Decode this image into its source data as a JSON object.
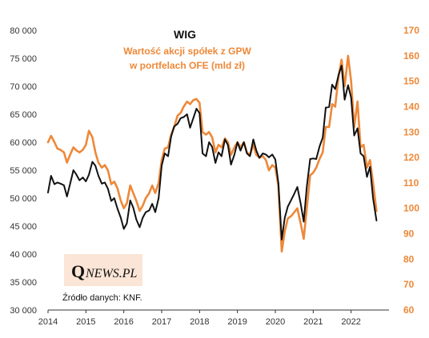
{
  "chart_data": {
    "type": "line",
    "title": "WIG",
    "subtitle_lines": [
      "Wartość akcji spółek z GPW",
      "w portfelach OFE (mld zł)"
    ],
    "source": "Źródło danych: KNF.",
    "logo": {
      "q": "Q",
      "rest": "NEWS.PL"
    },
    "x_ticks": [
      "2014",
      "2015",
      "2016",
      "2017",
      "2018",
      "2019",
      "2020",
      "2021",
      "2022"
    ],
    "left_axis": {
      "ylim": [
        30000,
        80000
      ],
      "ticks": [
        "30 000",
        "35 000",
        "40 000",
        "45 000",
        "50 000",
        "55 000",
        "60 000",
        "65 000",
        "70 000",
        "75 000",
        "80 000"
      ]
    },
    "right_axis": {
      "ylim": [
        60,
        170
      ],
      "ticks": [
        "60",
        "70",
        "80",
        "90",
        "100",
        "110",
        "120",
        "130",
        "140",
        "150",
        "160",
        "170"
      ]
    },
    "colors": {
      "wig": "#111111",
      "ofe": "#ee8838",
      "axis": "#333333",
      "logo_bg": "#fbe5d6"
    },
    "series": [
      {
        "axis": "left",
        "color": "#111111",
        "points": [
          [
            2014.0,
            51000
          ],
          [
            2014.08,
            54000
          ],
          [
            2014.17,
            52500
          ],
          [
            2014.25,
            52800
          ],
          [
            2014.33,
            52600
          ],
          [
            2014.42,
            52300
          ],
          [
            2014.5,
            50300
          ],
          [
            2014.58,
            52500
          ],
          [
            2014.67,
            55000
          ],
          [
            2014.75,
            54200
          ],
          [
            2014.83,
            53200
          ],
          [
            2014.92,
            53700
          ],
          [
            2015.0,
            53000
          ],
          [
            2015.08,
            54200
          ],
          [
            2015.17,
            56500
          ],
          [
            2015.25,
            55800
          ],
          [
            2015.33,
            54000
          ],
          [
            2015.42,
            52600
          ],
          [
            2015.5,
            52800
          ],
          [
            2015.58,
            51700
          ],
          [
            2015.67,
            49500
          ],
          [
            2015.75,
            50000
          ],
          [
            2015.83,
            48200
          ],
          [
            2015.92,
            46500
          ],
          [
            2016.0,
            44500
          ],
          [
            2016.08,
            45500
          ],
          [
            2016.17,
            49600
          ],
          [
            2016.25,
            48300
          ],
          [
            2016.33,
            46200
          ],
          [
            2016.42,
            44800
          ],
          [
            2016.5,
            46500
          ],
          [
            2016.58,
            47500
          ],
          [
            2016.67,
            47800
          ],
          [
            2016.75,
            49000
          ],
          [
            2016.83,
            47500
          ],
          [
            2016.92,
            50000
          ],
          [
            2017.0,
            55800
          ],
          [
            2017.08,
            58000
          ],
          [
            2017.17,
            57500
          ],
          [
            2017.25,
            61000
          ],
          [
            2017.33,
            62800
          ],
          [
            2017.42,
            63300
          ],
          [
            2017.5,
            64300
          ],
          [
            2017.58,
            64500
          ],
          [
            2017.67,
            65000
          ],
          [
            2017.75,
            62600
          ],
          [
            2017.83,
            64200
          ],
          [
            2017.92,
            66000
          ],
          [
            2018.0,
            65200
          ],
          [
            2018.08,
            58000
          ],
          [
            2018.17,
            57500
          ],
          [
            2018.25,
            60000
          ],
          [
            2018.33,
            59200
          ],
          [
            2018.42,
            56300
          ],
          [
            2018.5,
            58200
          ],
          [
            2018.58,
            57500
          ],
          [
            2018.67,
            60500
          ],
          [
            2018.75,
            59500
          ],
          [
            2018.83,
            56000
          ],
          [
            2018.92,
            57800
          ],
          [
            2019.0,
            60000
          ],
          [
            2019.08,
            58500
          ],
          [
            2019.17,
            60000
          ],
          [
            2019.25,
            58000
          ],
          [
            2019.33,
            57500
          ],
          [
            2019.42,
            60500
          ],
          [
            2019.5,
            58500
          ],
          [
            2019.58,
            57200
          ],
          [
            2019.67,
            58000
          ],
          [
            2019.75,
            57800
          ],
          [
            2019.83,
            57300
          ],
          [
            2019.92,
            57800
          ],
          [
            2020.0,
            56900
          ],
          [
            2020.08,
            52700
          ],
          [
            2020.17,
            42600
          ],
          [
            2020.25,
            46500
          ],
          [
            2020.33,
            48500
          ],
          [
            2020.42,
            49700
          ],
          [
            2020.5,
            50800
          ],
          [
            2020.58,
            52000
          ],
          [
            2020.67,
            49000
          ],
          [
            2020.75,
            45800
          ],
          [
            2020.83,
            52000
          ],
          [
            2020.92,
            57000
          ],
          [
            2021.0,
            57100
          ],
          [
            2021.08,
            57000
          ],
          [
            2021.17,
            59300
          ],
          [
            2021.25,
            60800
          ],
          [
            2021.33,
            66200
          ],
          [
            2021.42,
            66300
          ],
          [
            2021.5,
            70300
          ],
          [
            2021.58,
            69500
          ],
          [
            2021.67,
            72000
          ],
          [
            2021.75,
            73700
          ],
          [
            2021.83,
            67600
          ],
          [
            2021.92,
            70200
          ],
          [
            2022.0,
            68000
          ],
          [
            2022.08,
            61200
          ],
          [
            2022.17,
            62500
          ],
          [
            2022.25,
            58000
          ],
          [
            2022.33,
            57500
          ],
          [
            2022.42,
            53800
          ],
          [
            2022.5,
            55600
          ],
          [
            2022.58,
            50000
          ],
          [
            2022.67,
            46000
          ]
        ]
      },
      {
        "axis": "right",
        "color": "#ee8838",
        "points": [
          [
            2014.0,
            126
          ],
          [
            2014.08,
            128.5
          ],
          [
            2014.17,
            126
          ],
          [
            2014.25,
            123.5
          ],
          [
            2014.33,
            123
          ],
          [
            2014.42,
            122
          ],
          [
            2014.5,
            118
          ],
          [
            2014.58,
            121
          ],
          [
            2014.67,
            124
          ],
          [
            2014.75,
            122.8
          ],
          [
            2014.83,
            122
          ],
          [
            2014.92,
            123
          ],
          [
            2015.0,
            125
          ],
          [
            2015.08,
            130.5
          ],
          [
            2015.17,
            128
          ],
          [
            2015.25,
            122
          ],
          [
            2015.33,
            118
          ],
          [
            2015.42,
            116
          ],
          [
            2015.5,
            117
          ],
          [
            2015.58,
            115
          ],
          [
            2015.67,
            109.5
          ],
          [
            2015.75,
            110.5
          ],
          [
            2015.83,
            108
          ],
          [
            2015.92,
            103
          ],
          [
            2016.0,
            100
          ],
          [
            2016.08,
            102
          ],
          [
            2016.17,
            109
          ],
          [
            2016.25,
            106
          ],
          [
            2016.33,
            103
          ],
          [
            2016.42,
            99
          ],
          [
            2016.5,
            101
          ],
          [
            2016.58,
            104
          ],
          [
            2016.67,
            106
          ],
          [
            2016.75,
            109
          ],
          [
            2016.83,
            106
          ],
          [
            2016.92,
            110
          ],
          [
            2017.0,
            119
          ],
          [
            2017.08,
            123.5
          ],
          [
            2017.17,
            124
          ],
          [
            2017.25,
            129
          ],
          [
            2017.33,
            132
          ],
          [
            2017.42,
            136.5
          ],
          [
            2017.5,
            137.5
          ],
          [
            2017.58,
            140
          ],
          [
            2017.67,
            142
          ],
          [
            2017.75,
            141
          ],
          [
            2017.83,
            142.5
          ],
          [
            2017.92,
            143
          ],
          [
            2018.0,
            141.5
          ],
          [
            2018.08,
            130
          ],
          [
            2018.17,
            129
          ],
          [
            2018.25,
            130
          ],
          [
            2018.33,
            128
          ],
          [
            2018.42,
            122
          ],
          [
            2018.5,
            125
          ],
          [
            2018.58,
            124
          ],
          [
            2018.67,
            127.5
          ],
          [
            2018.75,
            126
          ],
          [
            2018.83,
            121
          ],
          [
            2018.92,
            124
          ],
          [
            2019.0,
            126
          ],
          [
            2019.08,
            124
          ],
          [
            2019.17,
            126
          ],
          [
            2019.25,
            122
          ],
          [
            2019.33,
            121
          ],
          [
            2019.42,
            125
          ],
          [
            2019.5,
            121
          ],
          [
            2019.58,
            120
          ],
          [
            2019.67,
            120.5
          ],
          [
            2019.75,
            119
          ],
          [
            2019.83,
            115
          ],
          [
            2019.92,
            117
          ],
          [
            2020.0,
            116
          ],
          [
            2020.08,
            109
          ],
          [
            2020.17,
            83
          ],
          [
            2020.25,
            91
          ],
          [
            2020.33,
            96
          ],
          [
            2020.42,
            97
          ],
          [
            2020.5,
            98.5
          ],
          [
            2020.58,
            100
          ],
          [
            2020.67,
            94
          ],
          [
            2020.75,
            88
          ],
          [
            2020.83,
            100
          ],
          [
            2020.92,
            113
          ],
          [
            2021.0,
            114
          ],
          [
            2021.08,
            116
          ],
          [
            2021.17,
            119.5
          ],
          [
            2021.25,
            122
          ],
          [
            2021.33,
            132
          ],
          [
            2021.42,
            132
          ],
          [
            2021.5,
            141
          ],
          [
            2021.58,
            140
          ],
          [
            2021.67,
            152
          ],
          [
            2021.75,
            158.5
          ],
          [
            2021.83,
            148
          ],
          [
            2021.92,
            160
          ],
          [
            2022.0,
            150
          ],
          [
            2022.08,
            132
          ],
          [
            2022.17,
            142
          ],
          [
            2022.25,
            124
          ],
          [
            2022.33,
            125
          ],
          [
            2022.42,
            116
          ],
          [
            2022.5,
            119
          ],
          [
            2022.58,
            110
          ],
          [
            2022.67,
            99
          ]
        ]
      }
    ]
  }
}
